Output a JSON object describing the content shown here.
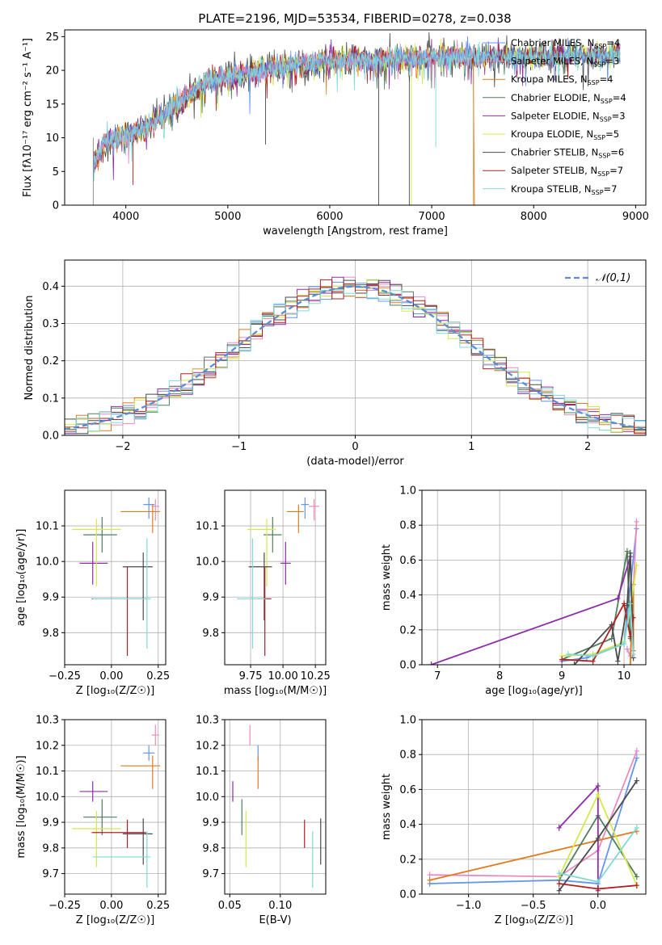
{
  "figure": {
    "title": "PLATE=2196, MJD=53534, FIBERID=0278, z=0.038"
  },
  "models": [
    {
      "name": "Chabrier MILES, N_SSP=4",
      "base": "Chabrier MILES, N",
      "sub": "SSP",
      "tail": "=4",
      "color": "#6495ED",
      "age": 10.16,
      "ageErr": [
        0.04,
        0.02
      ],
      "Z": 0.2,
      "ZErr": [
        0.03,
        0.03
      ],
      "mass": 10.17,
      "massErr": [
        0.03,
        0.03
      ],
      "ebv": 0.078,
      "ebvErr": [
        0.04,
        0.04
      ]
    },
    {
      "name": "Salpeter MILES, N_SSP=3",
      "base": "Salpeter MILES, N",
      "sub": "SSP",
      "tail": "=3",
      "color": "#E98AC4",
      "age": 10.155,
      "ageErr": [
        0.04,
        0.02
      ],
      "Z": 0.235,
      "ZErr": [
        0.02,
        0.02
      ],
      "mass": 10.24,
      "massErr": [
        0.04,
        0.04
      ],
      "ebv": 0.07,
      "ebvErr": [
        0.05,
        0.04
      ]
    },
    {
      "name": "Kroupa MILES, N_SSP=4",
      "base": "Kroupa MILES, N",
      "sub": "SSP",
      "tail": "=4",
      "color": "#E07B20",
      "age": 10.14,
      "ageErr": [
        0.06,
        0.02
      ],
      "Z": 0.22,
      "ZErr": [
        0.17,
        0.04
      ],
      "mass": 10.12,
      "massErr": [
        0.09,
        0.04
      ],
      "ebv": 0.078,
      "ebvErr": [
        0.05,
        0.04
      ]
    },
    {
      "name": "Chabrier ELODIE, N_SSP=4",
      "base": "Chabrier ELODIE, N",
      "sub": "SSP",
      "tail": "=4",
      "color": "#4F7F5C",
      "age": 10.075,
      "ageErr": [
        0.05,
        0.05
      ],
      "Z": -0.05,
      "ZErr": [
        0.1,
        0.08
      ],
      "mass": 9.92,
      "massErr": [
        0.07,
        0.07
      ],
      "ebv": 0.062,
      "ebvErr": [
        0.05,
        0.05
      ]
    },
    {
      "name": "Salpeter ELODIE, N_SSP=3",
      "base": "Salpeter ELODIE, N",
      "sub": "SSP",
      "tail": "=3",
      "color": "#8E2BAA",
      "age": 9.995,
      "ageErr": [
        0.06,
        0.06
      ],
      "Z": -0.1,
      "ZErr": [
        0.07,
        0.08
      ],
      "mass": 10.02,
      "massErr": [
        0.04,
        0.04
      ],
      "ebv": 0.053,
      "ebvErr": [
        0.04,
        0.05
      ]
    },
    {
      "name": "Kroupa ELODIE, N_SSP=5",
      "base": "Kroupa ELODIE, N",
      "sub": "SSP",
      "tail": "=5",
      "color": "#D4E84A",
      "age": 10.09,
      "ageErr": [
        0.16,
        0.03
      ],
      "Z": -0.08,
      "ZErr": [
        0.13,
        0.13
      ],
      "mass": 9.875,
      "massErr": [
        0.15,
        0.07
      ],
      "ebv": 0.066,
      "ebvErr": [
        0.06,
        0.04
      ]
    },
    {
      "name": "Chabrier STELIB, N_SSP=6",
      "base": "Chabrier STELIB, N",
      "sub": "SSP",
      "tail": "=6",
      "color": "#4A4A4A",
      "age": 9.985,
      "ageErr": [
        0.15,
        0.04
      ],
      "Z": 0.17,
      "ZErr": [
        0.11,
        0.05
      ],
      "mass": 9.855,
      "massErr": [
        0.12,
        0.06
      ],
      "ebv": 0.14,
      "ebvErr": [
        0.08,
        0.04
      ]
    },
    {
      "name": "Salpeter STELIB, N_SSP=7",
      "base": "Salpeter STELIB, N",
      "sub": "SSP",
      "tail": "=7",
      "color": "#B02020",
      "age": 9.895,
      "ageErr": [
        0.16,
        0.09
      ],
      "Z": 0.085,
      "ZErr": [
        0.19,
        0.1
      ],
      "mass": 9.86,
      "massErr": [
        0.06,
        0.05
      ],
      "ebv": 0.124,
      "ebvErr": [
        0.06,
        0.05
      ]
    },
    {
      "name": "Kroupa STELIB, N_SSP=7",
      "base": "Kroupa STELIB, N",
      "sub": "SSP",
      "tail": "=7",
      "color": "#7FD9D9",
      "age": 9.895,
      "ageErr": [
        0.14,
        0.17
      ],
      "Z": 0.19,
      "ZErr": [
        0.29,
        0.02
      ],
      "mass": 9.765,
      "massErr": [
        0.12,
        0.1
      ],
      "ebv": 0.132,
      "ebvErr": [
        0.07,
        0.07
      ]
    }
  ],
  "chart_data": [
    {
      "type": "line",
      "title": "PLATE=2196, MJD=53534, FIBERID=0278, z=0.038",
      "xlabel": "wavelength [Angstrom, rest frame]",
      "ylabel": "Flux [fλ10⁻¹⁷ erg cm⁻² s⁻¹ A⁻¹]",
      "xlim": [
        3400,
        9100
      ],
      "ylim": [
        0,
        26
      ],
      "xticks": [
        4000,
        5000,
        6000,
        7000,
        8000,
        9000
      ],
      "yticks": [
        0,
        5,
        10,
        15,
        20,
        25
      ],
      "continuum": [
        [
          3680,
          6
        ],
        [
          3800,
          9.5
        ],
        [
          4000,
          10.5
        ],
        [
          4200,
          11.5
        ],
        [
          4500,
          15
        ],
        [
          4800,
          18.5
        ],
        [
          5000,
          19
        ],
        [
          5500,
          20.5
        ],
        [
          6000,
          21.5
        ],
        [
          6500,
          21.5
        ],
        [
          7000,
          22
        ],
        [
          7500,
          22
        ],
        [
          8000,
          22
        ],
        [
          8500,
          22.2
        ],
        [
          8850,
          22.5
        ]
      ],
      "legend": "upper right"
    },
    {
      "type": "bar",
      "xlabel": "(data-model)/error",
      "ylabel": "Normed distribution",
      "xlim": [
        -2.5,
        2.5
      ],
      "ylim": [
        0,
        0.47
      ],
      "xticks": [
        -2,
        -1,
        0,
        1,
        2
      ],
      "yticks": [
        0,
        0.1,
        0.2,
        0.3,
        0.4
      ],
      "reference_curve": "𝒩(0,1)",
      "legend": "upper right"
    },
    {
      "type": "scatter",
      "xlabel": "Z [log₁₀(Z/Z☉)]",
      "ylabel": "age  [log₁₀(age/yr)]",
      "xlim": [
        -0.25,
        0.29
      ],
      "ylim": [
        9.71,
        10.2
      ],
      "xticks": [
        -0.25,
        0.0,
        0.25
      ],
      "yticks": [
        9.8,
        9.9,
        10.0,
        10.1
      ]
    },
    {
      "type": "scatter",
      "xlabel": "mass [log₁₀(M/M☉)]",
      "ylabel": "",
      "xlim": [
        9.55,
        10.33
      ],
      "ylim": [
        9.71,
        10.2
      ],
      "xticks": [
        9.75,
        10.0,
        10.25
      ],
      "yticks": [
        9.8,
        9.9,
        10.0,
        10.1
      ]
    },
    {
      "type": "line",
      "xlabel": "age  [log₁₀(age/yr)]",
      "ylabel": "mass weight",
      "xlim": [
        6.75,
        10.35
      ],
      "ylim": [
        0,
        1.0
      ],
      "xticks": [
        7,
        8,
        9,
        10
      ],
      "yticks": [
        0,
        0.2,
        0.4,
        0.6,
        0.8,
        1.0
      ],
      "series": [
        {
          "color": "#6495ED",
          "points": [
            [
              9.0,
              0.02
            ],
            [
              9.4,
              0.04
            ],
            [
              10.0,
              0.12
            ],
            [
              10.2,
              0.78
            ]
          ]
        },
        {
          "color": "#E98AC4",
          "points": [
            [
              10.05,
              0.09
            ],
            [
              10.1,
              0.05
            ],
            [
              10.2,
              0.82
            ]
          ]
        },
        {
          "color": "#E07B20",
          "points": [
            [
              10.1,
              0.0
            ],
            [
              10.15,
              0.46
            ],
            [
              10.15,
              0.08
            ]
          ]
        },
        {
          "color": "#4F7F5C",
          "points": [
            [
              9.0,
              0.03
            ],
            [
              9.8,
              0.15
            ],
            [
              10.05,
              0.65
            ],
            [
              10.1,
              0.15
            ]
          ]
        },
        {
          "color": "#8E2BAA",
          "points": [
            [
              6.9,
              0.0
            ],
            [
              9.9,
              0.38
            ],
            [
              10.1,
              0.62
            ]
          ]
        },
        {
          "color": "#D4E84A",
          "points": [
            [
              9.0,
              0.05
            ],
            [
              9.5,
              0.06
            ],
            [
              10.0,
              0.13
            ],
            [
              10.1,
              0.32
            ],
            [
              10.2,
              0.57
            ]
          ]
        },
        {
          "color": "#4A4A4A",
          "points": [
            [
              9.2,
              0.0
            ],
            [
              9.8,
              0.23
            ],
            [
              9.9,
              0.02
            ],
            [
              10.05,
              0.34
            ],
            [
              10.1,
              0.64
            ],
            [
              10.15,
              0.04
            ]
          ]
        },
        {
          "color": "#B02020",
          "points": [
            [
              9.0,
              0.03
            ],
            [
              9.5,
              0.02
            ],
            [
              10.0,
              0.35
            ],
            [
              10.1,
              0.16
            ],
            [
              10.15,
              0.27
            ]
          ]
        },
        {
          "color": "#7FD9D9",
          "points": [
            [
              9.1,
              0.06
            ],
            [
              9.5,
              0.05
            ],
            [
              10.0,
              0.12
            ],
            [
              10.1,
              0.35
            ],
            [
              10.15,
              0.06
            ]
          ]
        }
      ]
    },
    {
      "type": "scatter",
      "xlabel": "Z [log₁₀(Z/Z☉)]",
      "ylabel": "mass [log₁₀(M/M☉)]",
      "xlim": [
        -0.25,
        0.29
      ],
      "ylim": [
        9.62,
        10.3
      ],
      "xticks": [
        -0.25,
        0.0,
        0.25
      ],
      "yticks": [
        9.7,
        9.8,
        9.9,
        10.0,
        10.1,
        10.2,
        10.3
      ]
    },
    {
      "type": "scatter",
      "xlabel": "E(B-V)",
      "ylabel": "",
      "xlim": [
        0.045,
        0.145
      ],
      "ylim": [
        9.62,
        10.3
      ],
      "xticks": [
        0.05,
        0.1
      ],
      "yticks": [
        9.7,
        9.8,
        9.9,
        10.0,
        10.1,
        10.2,
        10.3
      ]
    },
    {
      "type": "line",
      "xlabel": "Z [log₁₀(Z/Z☉)]",
      "ylabel": "mass weight",
      "xlim": [
        -1.36,
        0.37
      ],
      "ylim": [
        0,
        1.0
      ],
      "xticks": [
        -1.0,
        -0.5,
        0.0
      ],
      "yticks": [
        0,
        0.2,
        0.4,
        0.6,
        0.8,
        1.0
      ],
      "series": [
        {
          "color": "#6495ED",
          "points": [
            [
              -1.3,
              0.06
            ],
            [
              -0.3,
              0.08
            ],
            [
              0.0,
              0.06
            ],
            [
              0.3,
              0.78
            ]
          ]
        },
        {
          "color": "#E98AC4",
          "points": [
            [
              -1.3,
              0.11
            ],
            [
              -0.3,
              0.1
            ],
            [
              0.0,
              0.25
            ],
            [
              0.3,
              0.82
            ]
          ]
        },
        {
          "color": "#E07B20",
          "points": [
            [
              -1.3,
              0.08
            ],
            [
              0.3,
              0.36
            ]
          ]
        },
        {
          "color": "#4F7F5C",
          "points": [
            [
              -0.3,
              0.08
            ],
            [
              0.0,
              0.45
            ],
            [
              0.3,
              0.1
            ]
          ]
        },
        {
          "color": "#8E2BAA",
          "points": [
            [
              -0.3,
              0.38
            ],
            [
              0.0,
              0.62
            ],
            [
              0.0,
              0.02
            ]
          ]
        },
        {
          "color": "#D4E84A",
          "points": [
            [
              -0.3,
              0.1
            ],
            [
              0.0,
              0.57
            ],
            [
              0.3,
              0.05
            ]
          ]
        },
        {
          "color": "#4A4A4A",
          "points": [
            [
              -0.3,
              0.02
            ],
            [
              0.0,
              0.32
            ],
            [
              0.3,
              0.65
            ]
          ]
        },
        {
          "color": "#B02020",
          "points": [
            [
              -0.3,
              0.06
            ],
            [
              0.0,
              0.03
            ],
            [
              0.3,
              0.05
            ]
          ]
        },
        {
          "color": "#7FD9D9",
          "points": [
            [
              -0.3,
              0.12
            ],
            [
              0.0,
              0.07
            ],
            [
              0.3,
              0.38
            ]
          ]
        }
      ]
    }
  ]
}
